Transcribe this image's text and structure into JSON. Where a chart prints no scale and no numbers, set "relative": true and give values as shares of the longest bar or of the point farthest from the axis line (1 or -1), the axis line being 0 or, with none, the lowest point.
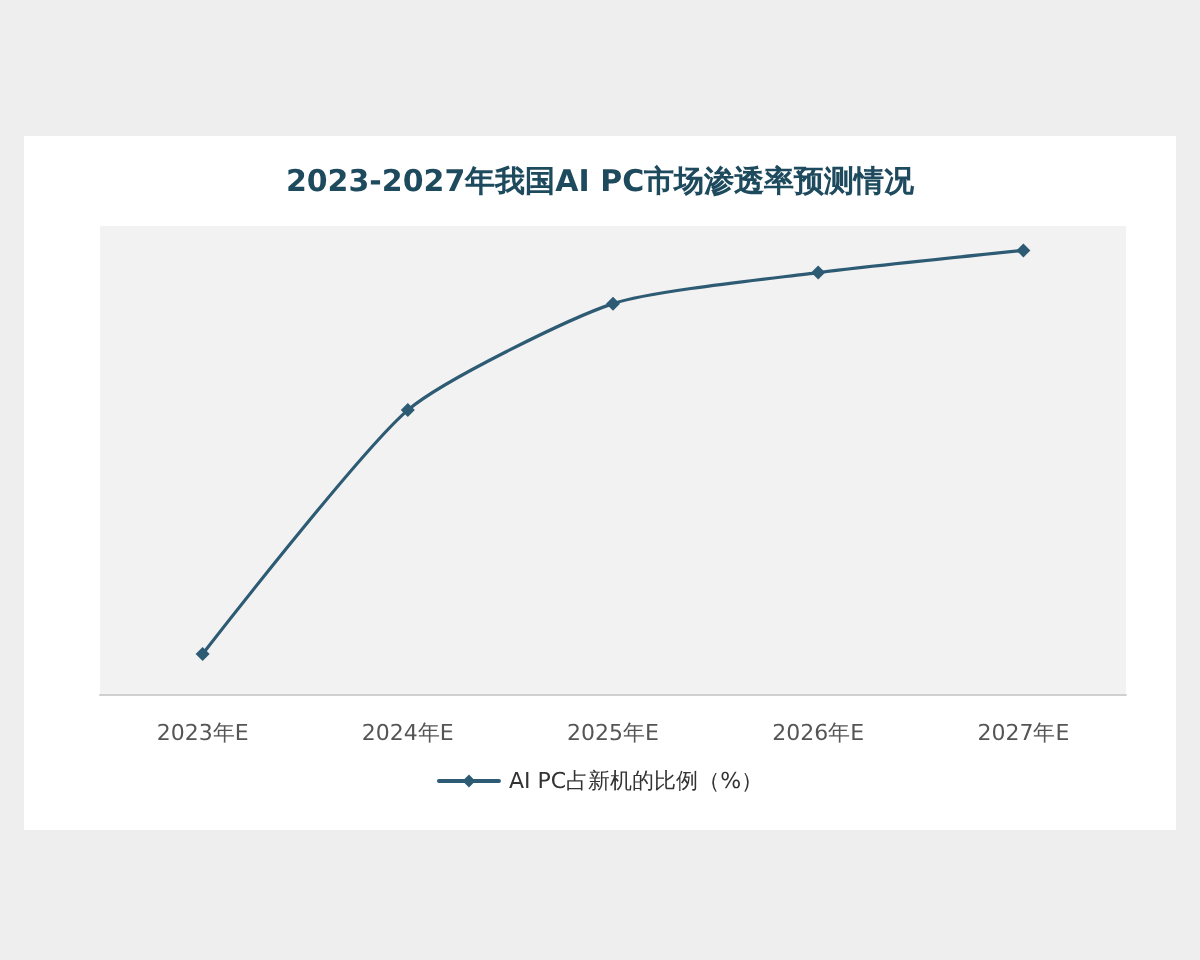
{
  "chart_data": {
    "type": "line",
    "title": "2023-2027年我国AI PC市场渗透率预测情况",
    "categories": [
      "2023年E",
      "2024年E",
      "2025年E",
      "2026年E",
      "2027年E"
    ],
    "series": [
      {
        "name": "AI PC占新机的比例（%）",
        "color": "#2d5b74",
        "values": [
          0.09,
          0.64,
          0.88,
          0.95,
          1
        ]
      }
    ],
    "relative": true,
    "marker": "diamond",
    "legend": "bottom"
  }
}
